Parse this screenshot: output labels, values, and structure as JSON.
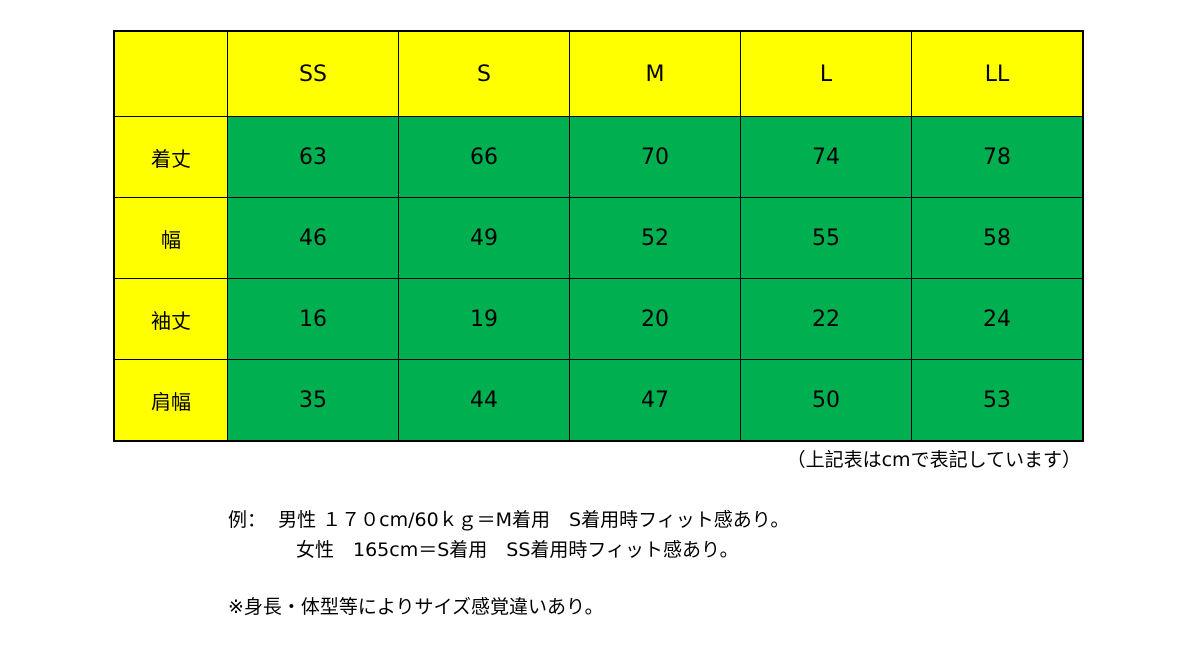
{
  "table": {
    "corner": "",
    "sizes": [
      "SS",
      "S",
      "M",
      "L",
      "LL"
    ],
    "rows": [
      {
        "label": "着丈",
        "values": [
          "63",
          "66",
          "70",
          "74",
          "78"
        ]
      },
      {
        "label": "幅",
        "values": [
          "46",
          "49",
          "52",
          "55",
          "58"
        ]
      },
      {
        "label": "袖丈",
        "values": [
          "16",
          "19",
          "20",
          "22",
          "24"
        ]
      },
      {
        "label": "肩幅",
        "values": [
          "35",
          "44",
          "47",
          "50",
          "53"
        ]
      }
    ]
  },
  "unit_note": "（上記表はcmで表記しています）",
  "example_line1": "例：  男性 １７０cm/60ｋｇ＝M着用　S着用時フィット感あり。",
  "example_line2": "女性　165cm＝S着用　SS着用時フィット感あり。",
  "disclaimer": "※身長・体型等によりサイズ感覚違いあり。",
  "colors": {
    "header_bg": "#ffff00",
    "value_bg": "#00b050"
  }
}
